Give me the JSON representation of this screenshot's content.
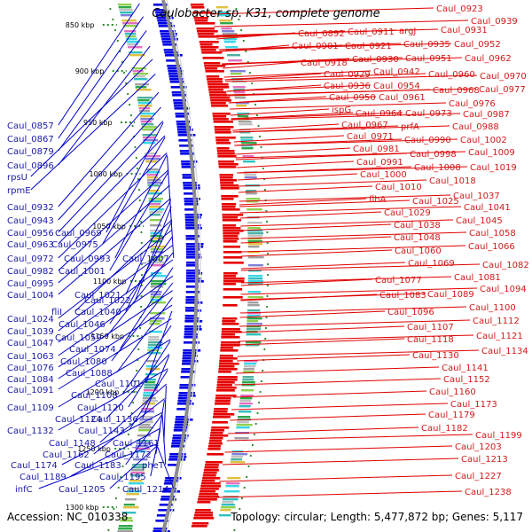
{
  "title": "Caulobacter sp. K31, complete genome",
  "accession": "Accession: NC_010338",
  "summary": "Topology: circular; Length: 5,477,872 bp; Genes: 5,117",
  "colors": {
    "forward": "#e60000",
    "reverse": "#0000e6",
    "leader_red": "#e00000",
    "leader_blue": "#0000cc",
    "backbone": "#8c8c8c",
    "ruler_tick": "#2a8a2a"
  },
  "ruler": [
    "850 kbp",
    "900 kbp",
    "950 kbp",
    "1000 kbp",
    "1050 kbp",
    "1100 kbp",
    "1150 kbp",
    "1200 kbp",
    "1250 kbp",
    "1300 kbp"
  ],
  "left_labels": [
    "Caul_0857",
    "Caul_0867",
    "Caul_0879",
    "Caul_0896",
    "rpsU",
    "rpmE",
    "Caul_0932",
    "Caul_0943",
    "Caul_0956",
    "Caul_0969",
    "Caul_0963",
    "Caul_0975",
    "Caul_0972",
    "Caul_0993",
    "Caul_1007",
    "Caul_0982",
    "Caul_1001",
    "Caul_0995",
    "Caul_1004",
    "Caul_1021",
    "Caul_1022",
    "fliI",
    "Caul_1040",
    "Caul_1024",
    "Caul_1046",
    "Caul_1039",
    "Caul_1059",
    "Caul_1047",
    "Caul_1074",
    "Caul_1063",
    "Caul_1080",
    "Caul_1076",
    "Caul_1088",
    "Caul_1084",
    "Caul_1101",
    "Caul_1091",
    "Caul_1108",
    "Caul_1109",
    "Caul_1120",
    "Caul_1124",
    "Caul_1136",
    "Caul_1132",
    "Caul_1143",
    "Caul_1148",
    "Caul_1161",
    "Caul_1162",
    "Caul_1172",
    "Caul_1174",
    "Caul_1183",
    "pheT",
    "Caul_1189",
    "Caul_1195",
    "infC",
    "Caul_1205",
    "Caul_1214"
  ],
  "right_labels": [
    "Caul_0923",
    "Caul_0939",
    "Caul_0892",
    "Caul_0911",
    "argJ",
    "Caul_0931",
    "Caul_0901",
    "Caul_0921",
    "Caul_0935",
    "Caul_0952",
    "Caul_0918",
    "Caul_0930",
    "Caul_0951",
    "Caul_0962",
    "Caul_0929",
    "Caul_0942",
    "Caul_0960",
    "Caul_0970",
    "Caul_0936",
    "Caul_0954",
    "Caul_0968",
    "Caul_0977",
    "Caul_0950",
    "Caul_0961",
    "Caul_0976",
    "ispG",
    "Caul_0964",
    "Caul_0973",
    "Caul_0987",
    "Caul_0967",
    "prfA",
    "Caul_0988",
    "Caul_0971",
    "Caul_0990",
    "Caul_1002",
    "Caul_0981",
    "Caul_0998",
    "Caul_1009",
    "Caul_0991",
    "Caul_1008",
    "Caul_1019",
    "Caul_1000",
    "Caul_1018",
    "Caul_1010",
    "Caul_1037",
    "flhA",
    "Caul_1025",
    "Caul_1041",
    "Caul_1029",
    "Caul_1038",
    "Caul_1045",
    "Caul_1058",
    "Caul_1048",
    "Caul_1066",
    "Caul_1060",
    "Caul_1069",
    "Caul_1082",
    "Caul_1077",
    "Caul_1081",
    "Caul_1094",
    "Caul_1083",
    "Caul_1089",
    "Caul_1100",
    "Caul_1096",
    "Caul_1112",
    "Caul_1107",
    "Caul_1121",
    "Caul_1118",
    "Caul_1134",
    "Caul_1130",
    "Caul_1141",
    "Caul_1152",
    "Caul_1160",
    "Caul_1173",
    "Caul_1179",
    "Caul_1182",
    "Caul_1199",
    "Caul_1203",
    "Caul_1213",
    "Caul_1227",
    "Caul_1238"
  ]
}
